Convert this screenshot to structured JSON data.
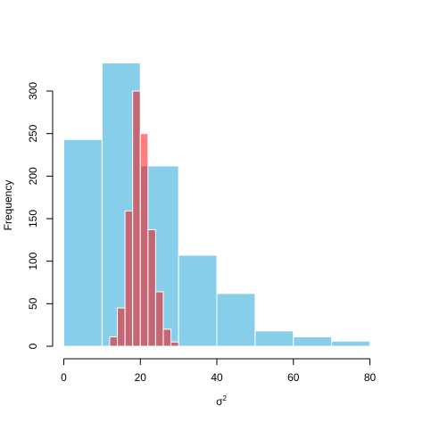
{
  "chart_data": {
    "type": "bar",
    "subtype": "overlaid-histogram",
    "title": "",
    "xlabel": "σ",
    "xlabel_superscript": "2",
    "ylabel": "Frequency",
    "xlim": [
      -4,
      88
    ],
    "ylim": [
      0,
      345
    ],
    "x_ticks": [
      0,
      20,
      40,
      60,
      80
    ],
    "y_ticks": [
      0,
      50,
      100,
      150,
      200,
      250,
      300
    ],
    "grid": false,
    "legend": "none",
    "series": [
      {
        "color": "#87CEEB",
        "bin_edges": [
          0,
          10,
          20,
          30,
          40,
          50,
          60,
          70,
          80,
          90
        ],
        "counts": [
          243,
          333,
          212,
          107,
          62,
          18,
          11,
          6,
          1
        ]
      },
      {
        "color": "#FF000080",
        "bin_edges": [
          12,
          14,
          16,
          18,
          20,
          22,
          24,
          26,
          28,
          30
        ],
        "counts": [
          11,
          45,
          159,
          300,
          250,
          137,
          64,
          20,
          5
        ]
      }
    ]
  }
}
